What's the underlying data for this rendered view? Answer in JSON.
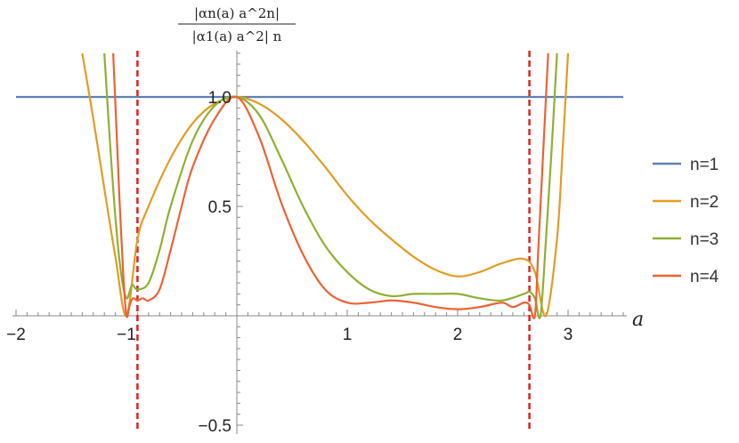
{
  "chart_data": {
    "type": "line",
    "xlabel": "a",
    "ylabel": "|αn(a) a^2n| / |α1(a) a^2| n",
    "xlim": [
      -2,
      3.5
    ],
    "ylim": [
      -0.5,
      1.2
    ],
    "x_ticks": [
      "−2",
      "−1",
      "1",
      "2",
      "3"
    ],
    "x_tick_values": [
      -2,
      -1,
      1,
      2,
      3
    ],
    "y_ticks": [
      "−0.5",
      "0.5",
      "1.0"
    ],
    "y_tick_values": [
      -0.5,
      0.5,
      1.0
    ],
    "legend_position": "right",
    "series": [
      {
        "name": "n=1",
        "color": "#5E81B5",
        "x": [
          -2,
          3.5
        ],
        "y": [
          1.0,
          1.0
        ]
      },
      {
        "name": "n=2",
        "color": "#E19C24",
        "x": [
          -1.4,
          -1.3,
          -1.2,
          -1.1,
          -1.0,
          -0.9,
          -0.8,
          -0.6,
          -0.4,
          -0.2,
          0,
          0.2,
          0.4,
          0.6,
          0.8,
          1.0,
          1.2,
          1.4,
          1.6,
          1.8,
          2.0,
          2.2,
          2.4,
          2.6,
          2.7,
          2.8,
          2.9,
          2.95,
          3.0
        ],
        "y": [
          1.2,
          0.9,
          0.58,
          0.27,
          0.0,
          0.35,
          0.5,
          0.72,
          0.88,
          0.97,
          1.0,
          0.97,
          0.9,
          0.8,
          0.68,
          0.55,
          0.44,
          0.35,
          0.27,
          0.21,
          0.18,
          0.2,
          0.24,
          0.26,
          0.2,
          0.0,
          0.35,
          0.75,
          1.2
        ]
      },
      {
        "name": "n=3",
        "color": "#8FB032",
        "x": [
          -1.2,
          -1.15,
          -1.1,
          -1.05,
          -1.0,
          -0.95,
          -0.9,
          -0.8,
          -0.7,
          -0.6,
          -0.4,
          -0.2,
          0,
          0.2,
          0.4,
          0.6,
          0.8,
          1.0,
          1.2,
          1.4,
          1.6,
          1.8,
          2.0,
          2.2,
          2.4,
          2.6,
          2.65,
          2.7,
          2.75,
          2.8,
          2.85,
          2.9
        ],
        "y": [
          1.2,
          0.8,
          0.45,
          0.2,
          0.08,
          0.14,
          0.12,
          0.15,
          0.3,
          0.5,
          0.8,
          0.96,
          1.0,
          0.92,
          0.72,
          0.5,
          0.32,
          0.2,
          0.12,
          0.09,
          0.1,
          0.1,
          0.1,
          0.08,
          0.07,
          0.1,
          0.11,
          0.08,
          0.0,
          0.35,
          0.75,
          1.2
        ]
      },
      {
        "name": "n=4",
        "color": "#EB6235",
        "x": [
          -1.12,
          -1.09,
          -1.06,
          -1.03,
          -1.0,
          -0.97,
          -0.94,
          -0.9,
          -0.85,
          -0.8,
          -0.7,
          -0.6,
          -0.5,
          -0.4,
          -0.2,
          0,
          0.2,
          0.4,
          0.6,
          0.8,
          1.0,
          1.2,
          1.4,
          1.6,
          1.8,
          2.0,
          2.2,
          2.4,
          2.5,
          2.6,
          2.65,
          2.7,
          2.73,
          2.76,
          2.79,
          2.82
        ],
        "y": [
          1.2,
          0.85,
          0.5,
          0.2,
          0.0,
          0.05,
          0.08,
          0.07,
          0.08,
          0.07,
          0.12,
          0.3,
          0.5,
          0.68,
          0.9,
          1.0,
          0.82,
          0.52,
          0.28,
          0.12,
          0.06,
          0.06,
          0.07,
          0.06,
          0.04,
          0.03,
          0.04,
          0.06,
          0.04,
          0.06,
          0.05,
          0.0,
          0.3,
          0.6,
          0.9,
          1.2
        ]
      }
    ],
    "reference_lines": [
      {
        "x": -0.9,
        "color": "#E0201B",
        "style": "dashed"
      },
      {
        "x": 2.65,
        "color": "#E0201B",
        "style": "dashed"
      }
    ]
  }
}
